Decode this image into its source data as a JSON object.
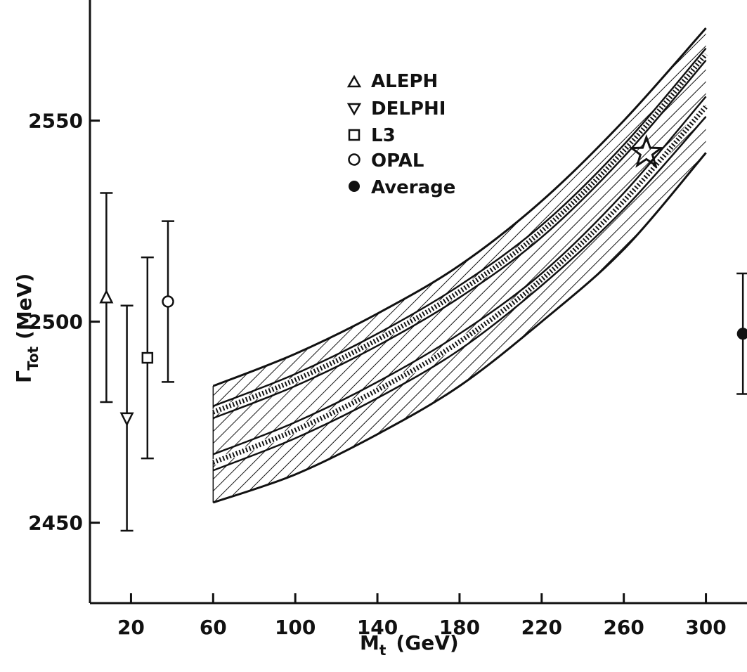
{
  "chart_data": {
    "type": "scatter",
    "xlabel": "M",
    "xlabel_sub": "t",
    "xlabel_unit": "(GeV)",
    "ylabel": "Γ",
    "ylabel_sub": "Tot",
    "ylabel_unit": "(MeV)",
    "xlim": [
      0,
      320
    ],
    "ylim": [
      2430,
      2580
    ],
    "x_ticks": [
      20,
      60,
      100,
      140,
      180,
      220,
      260,
      300
    ],
    "y_ticks": [
      2450,
      2500,
      2550
    ],
    "legend_position": "top-center",
    "series": [
      {
        "name": "ALEPH",
        "marker": "triangle-up",
        "x": 8,
        "y": 2506,
        "err": 26
      },
      {
        "name": "DELPHI",
        "marker": "triangle-down",
        "x": 18,
        "y": 2476,
        "err": 28
      },
      {
        "name": "L3",
        "marker": "square",
        "x": 28,
        "y": 2491,
        "err": 25
      },
      {
        "name": "OPAL",
        "marker": "circle-open",
        "x": 38,
        "y": 2505,
        "err": 20
      },
      {
        "name": "Average",
        "marker": "circle-filled",
        "x": 318,
        "y": 2497,
        "err": 15
      }
    ],
    "bands": [
      {
        "x": [
          60,
          100,
          140,
          180,
          220,
          260,
          300
        ],
        "upper": [
          2484,
          2492,
          2502,
          2514,
          2530,
          2550,
          2573
        ],
        "lower": [
          2455,
          2462,
          2472,
          2484,
          2500,
          2518,
          2542
        ],
        "centrals": [
          [
            2479,
            2487,
            2497,
            2509,
            2524,
            2544,
            2568
          ],
          [
            2476,
            2484,
            2494,
            2506,
            2521,
            2541,
            2565
          ],
          [
            2467,
            2475,
            2485,
            2497,
            2512,
            2532,
            2556
          ],
          [
            2463,
            2471,
            2481,
            2493,
            2509,
            2528,
            2551
          ]
        ]
      }
    ],
    "annotation": {
      "type": "star",
      "x": 271,
      "y": 2542
    }
  }
}
